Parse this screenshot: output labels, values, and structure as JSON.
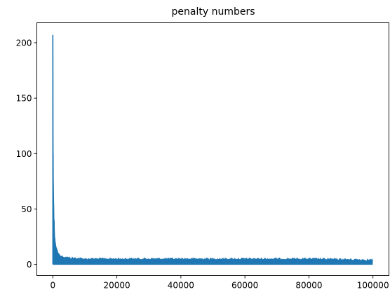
{
  "chart_data": {
    "type": "line",
    "title": "penalty numbers",
    "xlabel": "",
    "ylabel": "",
    "xlim": [
      -5000,
      105000
    ],
    "ylim": [
      -10,
      218
    ],
    "x_ticks": [
      0,
      20000,
      40000,
      60000,
      80000,
      100000
    ],
    "x_tick_labels": [
      "0",
      "20000",
      "40000",
      "60000",
      "80000",
      "100000"
    ],
    "y_ticks": [
      0,
      50,
      100,
      150,
      200
    ],
    "y_tick_labels": [
      "0",
      "50",
      "100",
      "150",
      "200"
    ],
    "grid": false,
    "legend": "none",
    "series": [
      {
        "color": "#1f77b4",
        "n_points": 100000,
        "envelope_x": [
          0,
          50,
          100,
          200,
          400,
          600,
          800,
          1000,
          1500,
          2000,
          3000,
          5000,
          10000,
          20000,
          40000,
          60000,
          80000,
          100000
        ],
        "envelope_max": [
          207,
          150,
          100,
          62,
          40,
          24,
          20,
          16,
          12,
          10,
          8,
          7,
          6,
          6,
          6,
          6,
          6,
          5
        ],
        "envelope_min": [
          0,
          0,
          0,
          0,
          0,
          0,
          0,
          0,
          0,
          0,
          0,
          0,
          0,
          0,
          0,
          0,
          0,
          0
        ],
        "x": [
          0,
          20,
          40,
          60,
          80,
          100,
          150,
          200,
          300,
          400,
          500,
          700,
          1000,
          1500,
          2000,
          3000,
          5000,
          10000,
          20000,
          40000,
          60000,
          80000,
          100000
        ],
        "values": [
          207,
          170,
          120,
          90,
          70,
          60,
          45,
          40,
          30,
          24,
          20,
          15,
          12,
          9,
          7,
          5,
          4,
          3,
          3,
          3,
          3,
          3,
          3
        ]
      }
    ]
  }
}
